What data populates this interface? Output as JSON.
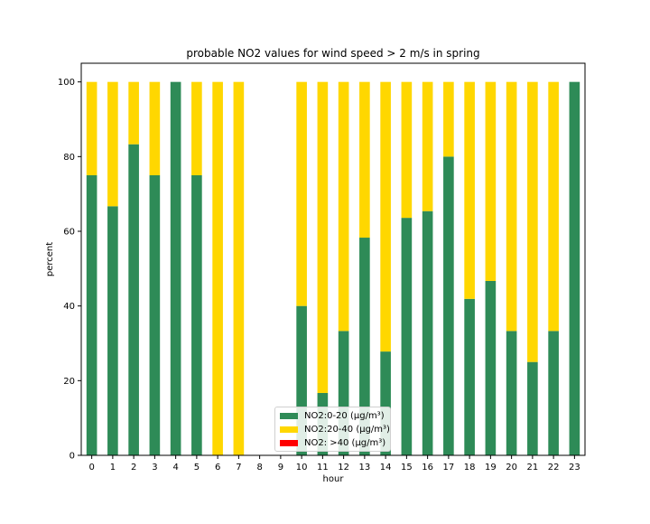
{
  "chart_data": {
    "type": "bar",
    "stacked": true,
    "title": "probable NO2 values for wind speed > 2 m/s in spring",
    "xlabel": "hour",
    "ylabel": "percent",
    "ylim": [
      0,
      105
    ],
    "yticks": [
      0,
      20,
      40,
      60,
      80,
      100
    ],
    "categories": [
      "0",
      "1",
      "2",
      "3",
      "4",
      "5",
      "6",
      "7",
      "8",
      "9",
      "10",
      "11",
      "12",
      "13",
      "14",
      "15",
      "16",
      "17",
      "18",
      "19",
      "20",
      "21",
      "22",
      "23"
    ],
    "series": [
      {
        "name": "NO2:0-20 (µg/m³)",
        "color": "#2e8b57",
        "values": [
          75,
          66.7,
          83.3,
          75,
          100,
          75,
          0,
          0,
          0,
          0,
          40,
          16.7,
          33.3,
          58.3,
          27.8,
          63.6,
          65.4,
          80,
          41.9,
          46.7,
          33.3,
          25,
          33.3,
          100
        ]
      },
      {
        "name": "NO2:20-40 (µg/m³)",
        "color": "#ffd700",
        "values": [
          25,
          33.3,
          16.7,
          25,
          0,
          25,
          100,
          100,
          0,
          0,
          60,
          83.3,
          66.7,
          41.7,
          72.2,
          36.4,
          34.6,
          20,
          58.1,
          53.3,
          66.7,
          75,
          66.7,
          0
        ]
      },
      {
        "name": "NO2: >40 (µg/m³)",
        "color": "#ff0000",
        "values": [
          0,
          0,
          0,
          0,
          0,
          0,
          0,
          0,
          0,
          0,
          0,
          0,
          0,
          0,
          0,
          0,
          0,
          0,
          0,
          0,
          0,
          0,
          0,
          0
        ]
      }
    ],
    "grid": false,
    "legend_position": "lower center"
  }
}
